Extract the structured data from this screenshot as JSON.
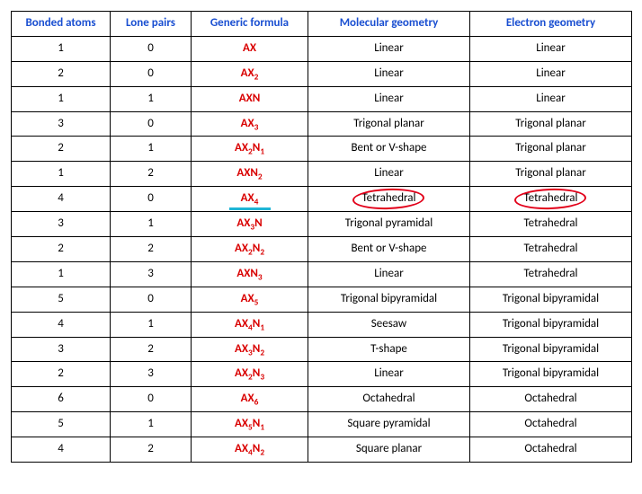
{
  "table": {
    "header_color": "#1a4fd1",
    "formula_color": "#d90000",
    "highlight_underline_color": "#1fb5d6",
    "circle_color": "#e2001a",
    "border_color": "#000000",
    "columns": [
      "Bonded atoms",
      "Lone pairs",
      "Generic formula",
      "Molecular geometry",
      "Electron geometry"
    ],
    "rows": [
      {
        "bonded": "1",
        "lonepairs": "0",
        "formula_base": "AX",
        "formula_xsub": "",
        "formula_nsub": "",
        "molecular": "Linear",
        "electron": "Linear"
      },
      {
        "bonded": "2",
        "lonepairs": "0",
        "formula_base": "AX",
        "formula_xsub": "2",
        "formula_nsub": "",
        "molecular": "Linear",
        "electron": "Linear"
      },
      {
        "bonded": "1",
        "lonepairs": "1",
        "formula_base": "AXN",
        "formula_xsub": "",
        "formula_nsub": "",
        "molecular": "Linear",
        "electron": "Linear"
      },
      {
        "bonded": "3",
        "lonepairs": "0",
        "formula_base": "AX",
        "formula_xsub": "3",
        "formula_nsub": "",
        "molecular": "Trigonal planar",
        "electron": "Trigonal planar"
      },
      {
        "bonded": "2",
        "lonepairs": "1",
        "formula_base": "AX",
        "formula_xsub": "2",
        "formula_nsub": "1",
        "molecular": "Bent or V-shape",
        "electron": "Trigonal planar"
      },
      {
        "bonded": "1",
        "lonepairs": "2",
        "formula_base": "AXN",
        "formula_xsub": "",
        "formula_nsub": "2",
        "molecular": "Linear",
        "electron": "Trigonal planar"
      },
      {
        "bonded": "4",
        "lonepairs": "0",
        "formula_base": "AX",
        "formula_xsub": "4",
        "formula_nsub": "",
        "molecular": "Tetrahedral",
        "electron": "Tetrahedral",
        "highlight": true,
        "circle": true
      },
      {
        "bonded": "3",
        "lonepairs": "1",
        "formula_base": "AX",
        "formula_xsub": "3",
        "formula_nsub": "N",
        "molecular": "Trigonal pyramidal",
        "electron": "Tetrahedral"
      },
      {
        "bonded": "2",
        "lonepairs": "2",
        "formula_base": "AX",
        "formula_xsub": "2",
        "formula_nsub": "2",
        "molecular": "Bent or V-shape",
        "electron": "Tetrahedral"
      },
      {
        "bonded": "1",
        "lonepairs": "3",
        "formula_base": "AXN",
        "formula_xsub": "",
        "formula_nsub": "3",
        "molecular": "Linear",
        "electron": "Tetrahedral"
      },
      {
        "bonded": "5",
        "lonepairs": "0",
        "formula_base": "AX",
        "formula_xsub": "5",
        "formula_nsub": "",
        "molecular": "Trigonal bipyramidal",
        "electron": "Trigonal bipyramidal"
      },
      {
        "bonded": "4",
        "lonepairs": "1",
        "formula_base": "AX",
        "formula_xsub": "4",
        "formula_nsub": "1",
        "molecular": "Seesaw",
        "electron": "Trigonal bipyramidal"
      },
      {
        "bonded": "3",
        "lonepairs": "2",
        "formula_base": "AX",
        "formula_xsub": "3",
        "formula_nsub": "2",
        "molecular": "T-shape",
        "electron": "Trigonal bipyramidal"
      },
      {
        "bonded": "2",
        "lonepairs": "3",
        "formula_base": "AX",
        "formula_xsub": "2",
        "formula_nsub": "3",
        "molecular": "Linear",
        "electron": "Trigonal bipyramidal"
      },
      {
        "bonded": "6",
        "lonepairs": "0",
        "formula_base": "AX",
        "formula_xsub": "6",
        "formula_nsub": "",
        "molecular": "Octahedral",
        "electron": "Octahedral"
      },
      {
        "bonded": "5",
        "lonepairs": "1",
        "formula_base": "AX",
        "formula_xsub": "5",
        "formula_nsub": "1",
        "molecular": "Square pyramidal",
        "electron": "Octahedral"
      },
      {
        "bonded": "4",
        "lonepairs": "2",
        "formula_base": "AX",
        "formula_xsub": "4",
        "formula_nsub": "2",
        "molecular": "Square planar",
        "electron": "Octahedral"
      }
    ]
  }
}
